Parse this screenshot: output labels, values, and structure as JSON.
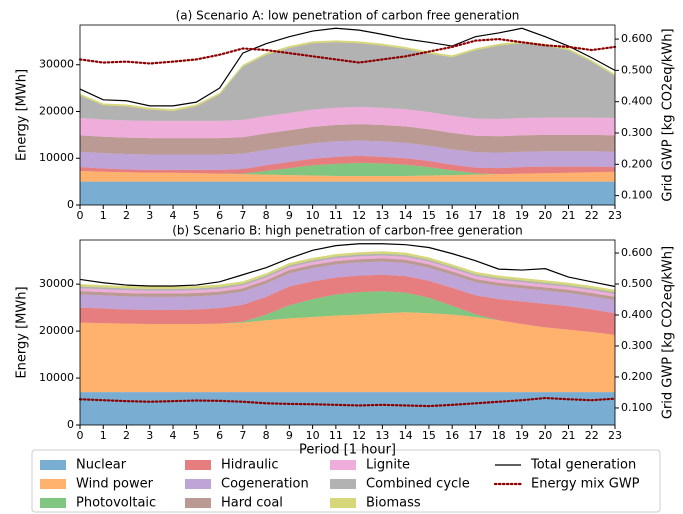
{
  "chart_data": [
    {
      "type": "stacked_area",
      "title": "(a) Scenario A: low penetration of carbon free generation",
      "y_label": "Energy [MWh]",
      "y2_label": "Grid GWP [kg CO2eq/kWh]",
      "x": [
        0,
        1,
        2,
        3,
        4,
        5,
        6,
        7,
        8,
        9,
        10,
        11,
        12,
        13,
        14,
        15,
        16,
        17,
        18,
        19,
        20,
        21,
        22,
        23
      ],
      "xlim": [
        0,
        23
      ],
      "xticks": [
        0,
        1,
        2,
        3,
        4,
        5,
        6,
        7,
        8,
        9,
        10,
        11,
        12,
        13,
        14,
        15,
        16,
        17,
        18,
        19,
        20,
        21,
        22,
        23
      ],
      "ylim": [
        0,
        38500
      ],
      "yticks": [
        0,
        10000,
        20000,
        30000
      ],
      "y2lim": [
        0.07,
        0.645
      ],
      "y2ticks": [
        {
          "value": 0.1,
          "label": "0.100"
        },
        {
          "value": 0.2,
          "label": "0.200"
        },
        {
          "value": 0.3,
          "label": "0.300"
        },
        {
          "value": 0.4,
          "label": "0.400"
        },
        {
          "value": 0.5,
          "label": "0.500"
        },
        {
          "value": 0.6,
          "label": "0.600"
        }
      ],
      "series": [
        {
          "name": "Nuclear",
          "color": "#1f77b4",
          "values": [
            5000,
            5000,
            5000,
            5000,
            5000,
            5000,
            5000,
            5000,
            5000,
            5000,
            5000,
            5000,
            5000,
            5000,
            5000,
            5000,
            5000,
            5000,
            5000,
            5000,
            5000,
            5000,
            5000,
            5000
          ]
        },
        {
          "name": "Wind power",
          "color": "#ff7f0e",
          "values": [
            2300,
            2100,
            2000,
            1900,
            1900,
            1800,
            1700,
            1600,
            1500,
            1400,
            1300,
            1200,
            1200,
            1200,
            1200,
            1300,
            1400,
            1500,
            1600,
            1700,
            1800,
            1900,
            2000,
            2100
          ]
        },
        {
          "name": "Photovoltaic",
          "color": "#2ca02c",
          "values": [
            0,
            0,
            0,
            0,
            0,
            0,
            0,
            100,
            800,
            1500,
            2200,
            2600,
            2800,
            2700,
            2400,
            1800,
            1000,
            300,
            0,
            0,
            0,
            0,
            0,
            0
          ]
        },
        {
          "name": "Hidraulic",
          "color": "#d62728",
          "values": [
            800,
            700,
            600,
            600,
            600,
            700,
            800,
            1000,
            1200,
            1300,
            1400,
            1500,
            1500,
            1400,
            1400,
            1300,
            1200,
            1200,
            1300,
            1400,
            1400,
            1300,
            1200,
            1000
          ]
        },
        {
          "name": "Cogeneration",
          "color": "#9467bd",
          "values": [
            3300,
            3300,
            3300,
            3300,
            3300,
            3300,
            3300,
            3300,
            3300,
            3300,
            3300,
            3300,
            3300,
            3300,
            3300,
            3300,
            3300,
            3300,
            3300,
            3300,
            3300,
            3300,
            3300,
            3300
          ]
        },
        {
          "name": "Hard coal",
          "color": "#8c564b",
          "values": [
            3500,
            3500,
            3500,
            3500,
            3500,
            3500,
            3500,
            3500,
            3500,
            3500,
            3500,
            3500,
            3500,
            3500,
            3500,
            3500,
            3500,
            3500,
            3500,
            3500,
            3500,
            3500,
            3500,
            3500
          ]
        },
        {
          "name": "Lignite",
          "color": "#e377c2",
          "values": [
            3700,
            3700,
            3700,
            3700,
            3700,
            3700,
            3700,
            3700,
            3700,
            3700,
            3700,
            3700,
            3700,
            3700,
            3700,
            3700,
            3700,
            3700,
            3700,
            3700,
            3700,
            3700,
            3700,
            3700
          ]
        },
        {
          "name": "Combined cycle",
          "color": "#7f7f7f",
          "values": [
            4800,
            3000,
            3000,
            2400,
            2100,
            3100,
            5600,
            11400,
            13100,
            13900,
            14200,
            14000,
            13600,
            13300,
            12900,
            12500,
            12500,
            14600,
            15700,
            16000,
            15400,
            14400,
            11900,
            9000
          ]
        },
        {
          "name": "Biomass",
          "color": "#bcbd22",
          "values": [
            400,
            400,
            400,
            400,
            400,
            400,
            400,
            400,
            400,
            400,
            400,
            400,
            400,
            400,
            400,
            400,
            400,
            400,
            400,
            400,
            400,
            400,
            400,
            400
          ]
        }
      ],
      "total": {
        "name": "Total generation",
        "color": "#000000",
        "values": [
          24800,
          22500,
          22300,
          21200,
          21200,
          22000,
          25000,
          32500,
          34500,
          36000,
          37200,
          37800,
          37400,
          36500,
          35500,
          34800,
          34000,
          36000,
          36800,
          37800,
          36000,
          34000,
          31500,
          28800
        ]
      },
      "gwp": {
        "name": "Energy mix GWP",
        "color": "#8b0000",
        "axis": "y2",
        "values": [
          0.535,
          0.525,
          0.528,
          0.522,
          0.528,
          0.535,
          0.55,
          0.57,
          0.565,
          0.555,
          0.545,
          0.535,
          0.525,
          0.535,
          0.545,
          0.56,
          0.575,
          0.595,
          0.6,
          0.59,
          0.58,
          0.575,
          0.565,
          0.575
        ]
      }
    },
    {
      "type": "stacked_area",
      "title": "(b) Scenario B: high penetration of carbon-free generation",
      "x_label": "Period [1 hour]",
      "y_label": "Energy [MWh]",
      "y2_label": "Grid GWP [kg CO2eq/kWh]",
      "x": [
        0,
        1,
        2,
        3,
        4,
        5,
        6,
        7,
        8,
        9,
        10,
        11,
        12,
        13,
        14,
        15,
        16,
        17,
        18,
        19,
        20,
        21,
        22,
        23
      ],
      "xlim": [
        0,
        23
      ],
      "xticks": [
        0,
        1,
        2,
        3,
        4,
        5,
        6,
        7,
        8,
        9,
        10,
        11,
        12,
        13,
        14,
        15,
        16,
        17,
        18,
        19,
        20,
        21,
        22,
        23
      ],
      "ylim": [
        0,
        39400
      ],
      "yticks": [
        0,
        10000,
        20000,
        30000
      ],
      "y2lim": [
        0.045,
        0.642
      ],
      "y2ticks": [
        {
          "value": 0.1,
          "label": "0.100"
        },
        {
          "value": 0.2,
          "label": "0.200"
        },
        {
          "value": 0.3,
          "label": "0.300"
        },
        {
          "value": 0.4,
          "label": "0.400"
        },
        {
          "value": 0.5,
          "label": "0.500"
        },
        {
          "value": 0.6,
          "label": "0.600"
        }
      ],
      "series": [
        {
          "name": "Nuclear",
          "color": "#1f77b4",
          "values": [
            7000,
            7000,
            7000,
            7000,
            7000,
            7000,
            7000,
            7000,
            7000,
            7000,
            7000,
            7000,
            7000,
            7000,
            7000,
            7000,
            7000,
            7000,
            7000,
            7000,
            7000,
            7000,
            7000,
            7000
          ]
        },
        {
          "name": "Wind power",
          "color": "#ff7f0e",
          "values": [
            14800,
            14700,
            14600,
            14500,
            14500,
            14500,
            14600,
            14800,
            15300,
            15700,
            16000,
            16300,
            16500,
            16800,
            17000,
            16800,
            16500,
            16000,
            15300,
            14500,
            13800,
            13300,
            12800,
            12200
          ]
        },
        {
          "name": "Photovoltaic",
          "color": "#2ca02c",
          "values": [
            0,
            0,
            0,
            0,
            0,
            0,
            0,
            200,
            1200,
            2800,
            3800,
            4500,
            4800,
            4700,
            4200,
            3300,
            1900,
            600,
            0,
            0,
            0,
            0,
            0,
            0
          ]
        },
        {
          "name": "Hidraulic",
          "color": "#d62728",
          "values": [
            3200,
            3100,
            3000,
            3000,
            3000,
            3100,
            3300,
            3600,
            3800,
            4000,
            3800,
            3600,
            3500,
            3500,
            3500,
            3600,
            3800,
            4000,
            4500,
            4800,
            5000,
            5000,
            4800,
            4600
          ]
        },
        {
          "name": "Cogeneration",
          "color": "#9467bd",
          "values": [
            2800,
            2800,
            2800,
            2800,
            2800,
            2800,
            2800,
            2800,
            2800,
            2800,
            2800,
            2800,
            2800,
            2800,
            2800,
            2800,
            2800,
            2800,
            2800,
            2800,
            2800,
            2800,
            2800,
            2800
          ]
        },
        {
          "name": "Hard coal",
          "color": "#8c564b",
          "values": [
            700,
            700,
            700,
            700,
            700,
            700,
            700,
            700,
            700,
            700,
            700,
            700,
            700,
            700,
            700,
            700,
            700,
            700,
            700,
            700,
            700,
            700,
            700,
            700
          ]
        },
        {
          "name": "Lignite",
          "color": "#e377c2",
          "values": [
            600,
            600,
            600,
            600,
            600,
            600,
            600,
            600,
            600,
            600,
            600,
            600,
            600,
            600,
            600,
            600,
            600,
            600,
            600,
            600,
            600,
            600,
            600,
            600
          ]
        },
        {
          "name": "Combined cycle",
          "color": "#7f7f7f",
          "values": [
            400,
            400,
            400,
            400,
            400,
            400,
            400,
            400,
            400,
            400,
            400,
            400,
            400,
            400,
            400,
            400,
            400,
            400,
            400,
            400,
            400,
            400,
            400,
            400
          ]
        },
        {
          "name": "Biomass",
          "color": "#bcbd22",
          "values": [
            500,
            500,
            500,
            500,
            500,
            500,
            500,
            500,
            500,
            500,
            500,
            500,
            500,
            500,
            500,
            500,
            500,
            500,
            500,
            500,
            500,
            500,
            500,
            500
          ]
        }
      ],
      "total": {
        "name": "Total generation",
        "color": "#000000",
        "values": [
          31000,
          30300,
          29800,
          29600,
          29600,
          29800,
          30500,
          32000,
          33500,
          35500,
          37200,
          38200,
          38600,
          38600,
          38400,
          37800,
          36500,
          35000,
          33200,
          33000,
          33300,
          31500,
          30500,
          29500
        ]
      },
      "gwp": {
        "name": "Energy mix GWP",
        "color": "#8b0000",
        "axis": "y2",
        "values": [
          0.128,
          0.125,
          0.122,
          0.12,
          0.122,
          0.124,
          0.123,
          0.12,
          0.115,
          0.113,
          0.112,
          0.11,
          0.108,
          0.11,
          0.108,
          0.106,
          0.11,
          0.115,
          0.12,
          0.125,
          0.132,
          0.128,
          0.125,
          0.13
        ]
      }
    }
  ]
}
